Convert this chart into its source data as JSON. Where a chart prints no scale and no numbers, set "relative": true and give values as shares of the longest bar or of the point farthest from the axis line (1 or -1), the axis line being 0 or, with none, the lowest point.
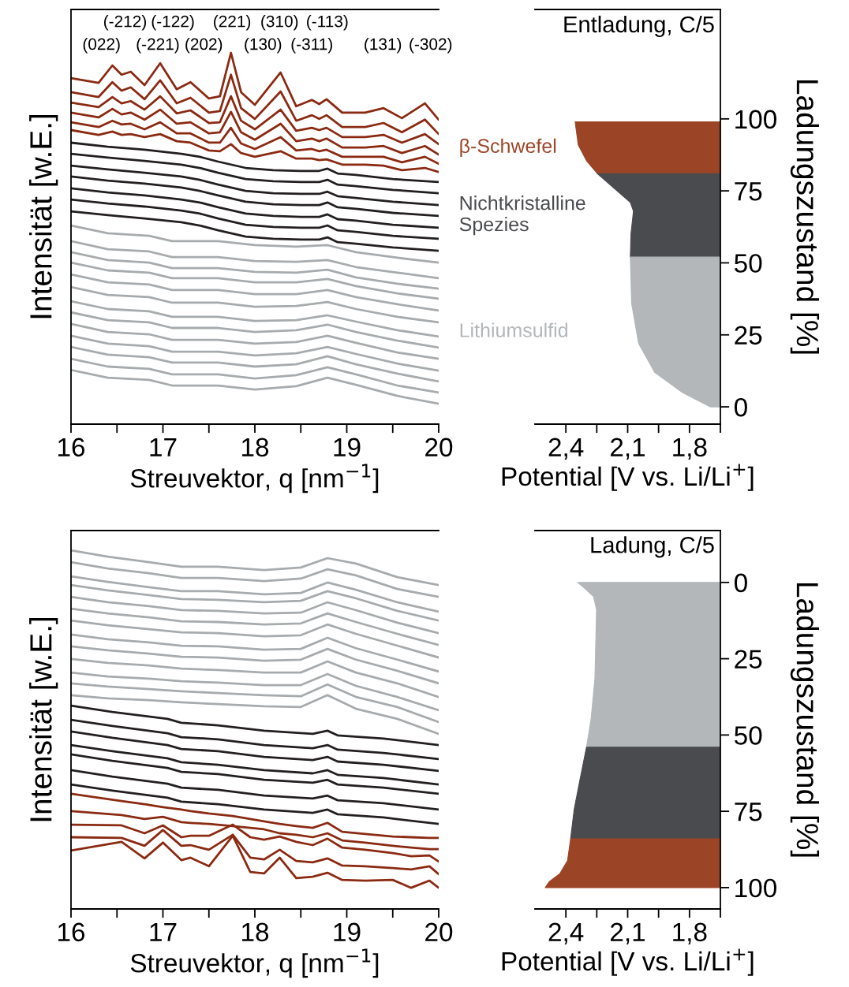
{
  "chart_data": [
    {
      "type": "line",
      "relative": true,
      "xlabel": "Streuvektor, q [nm$^{−1}$]",
      "ylabel": "Intensität [w.E.]",
      "xlim": [
        16,
        20
      ],
      "xticks": [
        16,
        {
          "value": 16.5,
          "label": null
        },
        17,
        {
          "value": 17.5,
          "label": null
        },
        18,
        {
          "value": 18.5,
          "label": null
        },
        19,
        {
          "value": 19.5,
          "label": null
        },
        20
      ],
      "x": [
        16.0,
        16.3,
        16.45,
        16.55,
        16.65,
        16.8,
        16.97,
        17.15,
        17.3,
        17.5,
        17.62,
        17.74,
        17.85,
        18.0,
        18.28,
        18.45,
        18.62,
        18.7,
        18.78,
        18.95,
        19.2,
        19.4,
        19.6,
        19.85,
        20.0
      ],
      "annotations": [
        "(-212)",
        "(-122)",
        "(221)",
        "(310)",
        "(-113)",
        "(022)",
        "(-221)",
        "(202)",
        "(130)",
        "(-311)",
        "(131)",
        "(-302)"
      ],
      "series": [
        {
          "color": "#8b2a12",
          "values": [
            0.932,
            0.919,
            0.966,
            0.941,
            0.949,
            0.913,
            0.972,
            0.902,
            0.921,
            0.877,
            0.883,
            1.0,
            0.894,
            0.86,
            0.947,
            0.856,
            0.873,
            0.862,
            0.875,
            0.839,
            0.839,
            0.851,
            0.824,
            0.864,
            0.82
          ]
        },
        {
          "color": "#8b2a12",
          "values": [
            0.894,
            0.881,
            0.921,
            0.898,
            0.907,
            0.875,
            0.926,
            0.864,
            0.879,
            0.839,
            0.843,
            0.941,
            0.851,
            0.822,
            0.896,
            0.817,
            0.832,
            0.822,
            0.832,
            0.8,
            0.8,
            0.811,
            0.786,
            0.82,
            0.781
          ]
        },
        {
          "color": "#8b2a12",
          "values": [
            0.866,
            0.854,
            0.881,
            0.864,
            0.87,
            0.847,
            0.883,
            0.837,
            0.845,
            0.811,
            0.813,
            0.883,
            0.817,
            0.794,
            0.847,
            0.79,
            0.798,
            0.792,
            0.798,
            0.773,
            0.773,
            0.779,
            0.758,
            0.781,
            0.754
          ]
        },
        {
          "color": "#8b2a12",
          "values": [
            0.839,
            0.826,
            0.849,
            0.834,
            0.839,
            0.82,
            0.847,
            0.809,
            0.813,
            0.783,
            0.786,
            0.841,
            0.786,
            0.766,
            0.809,
            0.762,
            0.769,
            0.762,
            0.769,
            0.745,
            0.745,
            0.749,
            0.73,
            0.749,
            0.726
          ]
        },
        {
          "color": "#8b2a12",
          "values": [
            0.813,
            0.8,
            0.817,
            0.807,
            0.809,
            0.794,
            0.813,
            0.783,
            0.783,
            0.758,
            0.758,
            0.798,
            0.756,
            0.741,
            0.773,
            0.737,
            0.741,
            0.735,
            0.739,
            0.72,
            0.72,
            0.72,
            0.705,
            0.72,
            0.701
          ]
        },
        {
          "color": "#8b2a12",
          "values": [
            0.792,
            0.779,
            0.788,
            0.779,
            0.781,
            0.773,
            0.781,
            0.762,
            0.758,
            0.737,
            0.735,
            0.754,
            0.73,
            0.72,
            0.735,
            0.715,
            0.715,
            0.711,
            0.713,
            0.699,
            0.699,
            0.696,
            0.684,
            0.69,
            0.679
          ]
        },
        {
          "color": "#231f20",
          "x": [
            16.0,
            16.4,
            16.8,
            17.2,
            17.4,
            17.6,
            17.9,
            18.2,
            18.5,
            18.7,
            18.79,
            18.9,
            19.1,
            19.5,
            20.0
          ],
          "values": [
            0.758,
            0.747,
            0.739,
            0.728,
            0.72,
            0.707,
            0.69,
            0.684,
            0.682,
            0.682,
            0.688,
            0.675,
            0.671,
            0.66,
            0.652
          ]
        },
        {
          "color": "#231f20",
          "x": [
            16.0,
            16.4,
            16.8,
            17.2,
            17.4,
            17.6,
            17.9,
            18.2,
            18.5,
            18.7,
            18.79,
            18.9,
            19.1,
            19.5,
            20.0
          ],
          "values": [
            0.728,
            0.718,
            0.709,
            0.699,
            0.69,
            0.677,
            0.66,
            0.654,
            0.652,
            0.652,
            0.658,
            0.645,
            0.641,
            0.631,
            0.622
          ]
        },
        {
          "color": "#231f20",
          "x": [
            16.0,
            16.4,
            16.8,
            17.2,
            17.4,
            17.6,
            17.9,
            18.2,
            18.5,
            18.7,
            18.79,
            18.9,
            19.1,
            19.5,
            20.0
          ],
          "values": [
            0.696,
            0.686,
            0.677,
            0.667,
            0.658,
            0.645,
            0.628,
            0.622,
            0.62,
            0.62,
            0.626,
            0.614,
            0.609,
            0.599,
            0.59
          ]
        },
        {
          "color": "#231f20",
          "x": [
            16.0,
            16.4,
            16.8,
            17.2,
            17.4,
            17.6,
            17.9,
            18.2,
            18.5,
            18.7,
            18.79,
            18.9,
            19.1,
            19.5,
            20.0
          ],
          "values": [
            0.667,
            0.656,
            0.648,
            0.637,
            0.628,
            0.616,
            0.599,
            0.592,
            0.59,
            0.59,
            0.597,
            0.584,
            0.58,
            0.569,
            0.561
          ]
        },
        {
          "color": "#231f20",
          "x": [
            16.0,
            16.4,
            16.8,
            17.2,
            17.4,
            17.6,
            17.9,
            18.2,
            18.5,
            18.7,
            18.79,
            18.9,
            19.1,
            19.5,
            20.0
          ],
          "values": [
            0.635,
            0.624,
            0.616,
            0.605,
            0.597,
            0.584,
            0.567,
            0.561,
            0.558,
            0.558,
            0.565,
            0.552,
            0.548,
            0.537,
            0.529
          ]
        },
        {
          "color": "#231f20",
          "x": [
            16.0,
            16.4,
            16.8,
            17.2,
            17.4,
            17.6,
            17.9,
            18.2,
            18.5,
            18.7,
            18.79,
            18.9,
            19.1,
            19.5,
            20.0
          ],
          "values": [
            0.605,
            0.594,
            0.586,
            0.575,
            0.567,
            0.554,
            0.537,
            0.531,
            0.529,
            0.529,
            0.535,
            0.522,
            0.518,
            0.507,
            0.499
          ]
        },
        {
          "color": "#231f20",
          "x": [
            16.0,
            16.4,
            16.8,
            17.2,
            17.4,
            17.6,
            17.9,
            18.2,
            18.5,
            18.7,
            18.79,
            18.9,
            19.1,
            19.5,
            20.0
          ],
          "values": [
            0.573,
            0.563,
            0.554,
            0.544,
            0.535,
            0.522,
            0.505,
            0.499,
            0.497,
            0.497,
            0.503,
            0.49,
            0.486,
            0.476,
            0.467
          ]
        },
        {
          "color": "#a7abad",
          "x": [
            16.0,
            16.4,
            16.85,
            17.1,
            17.6,
            18.0,
            18.45,
            18.79,
            19.1,
            19.55,
            20.0
          ],
          "values": [
            0.535,
            0.514,
            0.507,
            0.493,
            0.493,
            0.482,
            0.478,
            0.482,
            0.463,
            0.448,
            0.435
          ]
        },
        {
          "color": "#a7abad",
          "x": [
            16.0,
            16.4,
            16.85,
            17.1,
            17.6,
            18.0,
            18.45,
            18.79,
            19.1,
            19.55,
            20.0
          ],
          "values": [
            0.493,
            0.471,
            0.465,
            0.45,
            0.45,
            0.439,
            0.437,
            0.442,
            0.423,
            0.408,
            0.393
          ]
        },
        {
          "color": "#a7abad",
          "x": [
            16.0,
            16.4,
            16.85,
            17.1,
            17.6,
            18.0,
            18.45,
            18.79,
            19.1,
            19.55,
            20.0
          ],
          "values": [
            0.463,
            0.442,
            0.435,
            0.42,
            0.42,
            0.41,
            0.408,
            0.416,
            0.395,
            0.378,
            0.365
          ]
        },
        {
          "color": "#a7abad",
          "x": [
            16.0,
            16.4,
            16.85,
            17.1,
            17.6,
            18.0,
            18.45,
            18.79,
            19.1,
            19.55,
            20.0
          ],
          "values": [
            0.435,
            0.414,
            0.408,
            0.393,
            0.393,
            0.382,
            0.382,
            0.391,
            0.372,
            0.352,
            0.338
          ]
        },
        {
          "color": "#a7abad",
          "x": [
            16.0,
            16.4,
            16.85,
            17.1,
            17.6,
            18.0,
            18.45,
            18.79,
            19.1,
            19.55,
            20.0
          ],
          "values": [
            0.403,
            0.382,
            0.376,
            0.361,
            0.361,
            0.35,
            0.35,
            0.361,
            0.342,
            0.323,
            0.306
          ]
        },
        {
          "color": "#a7abad",
          "x": [
            16.0,
            16.4,
            16.85,
            17.1,
            17.6,
            18.0,
            18.45,
            18.79,
            19.1,
            19.55,
            20.0
          ],
          "values": [
            0.369,
            0.348,
            0.342,
            0.327,
            0.327,
            0.316,
            0.318,
            0.329,
            0.31,
            0.289,
            0.274
          ]
        },
        {
          "color": "#a7abad",
          "x": [
            16.0,
            16.4,
            16.85,
            17.1,
            17.6,
            18.0,
            18.45,
            18.79,
            19.1,
            19.55,
            20.0
          ],
          "values": [
            0.331,
            0.31,
            0.304,
            0.289,
            0.289,
            0.278,
            0.28,
            0.293,
            0.276,
            0.253,
            0.236
          ]
        },
        {
          "color": "#a7abad",
          "x": [
            16.0,
            16.4,
            16.85,
            17.1,
            17.6,
            18.0,
            18.45,
            18.79,
            19.1,
            19.55,
            20.0
          ],
          "values": [
            0.301,
            0.28,
            0.274,
            0.259,
            0.259,
            0.248,
            0.253,
            0.268,
            0.248,
            0.225,
            0.206
          ]
        },
        {
          "color": "#a7abad",
          "x": [
            16.0,
            16.4,
            16.85,
            17.1,
            17.6,
            18.0,
            18.45,
            18.79,
            19.1,
            19.55,
            20.0
          ],
          "values": [
            0.27,
            0.248,
            0.242,
            0.227,
            0.227,
            0.217,
            0.221,
            0.238,
            0.219,
            0.193,
            0.176
          ]
        },
        {
          "color": "#a7abad",
          "x": [
            16.0,
            16.4,
            16.85,
            17.1,
            17.6,
            18.0,
            18.45,
            18.79,
            19.1,
            19.55,
            20.0
          ],
          "values": [
            0.238,
            0.217,
            0.21,
            0.195,
            0.195,
            0.185,
            0.191,
            0.208,
            0.189,
            0.163,
            0.144
          ]
        },
        {
          "color": "#a7abad",
          "x": [
            16.0,
            16.4,
            16.85,
            17.1,
            17.6,
            18.0,
            18.45,
            18.79,
            19.1,
            19.55,
            20.0
          ],
          "values": [
            0.208,
            0.187,
            0.18,
            0.166,
            0.166,
            0.155,
            0.161,
            0.183,
            0.161,
            0.136,
            0.115
          ]
        },
        {
          "color": "#a7abad",
          "x": [
            16.0,
            16.4,
            16.85,
            17.1,
            17.6,
            18.0,
            18.45,
            18.79,
            19.1,
            19.55,
            20.0
          ],
          "values": [
            0.176,
            0.155,
            0.149,
            0.134,
            0.134,
            0.123,
            0.132,
            0.153,
            0.134,
            0.104,
            0.085
          ]
        },
        {
          "color": "#a7abad",
          "x": [
            16.0,
            16.4,
            16.85,
            17.1,
            17.6,
            18.0,
            18.45,
            18.79,
            19.1,
            19.55,
            20.0
          ],
          "values": [
            0.146,
            0.125,
            0.119,
            0.104,
            0.104,
            0.093,
            0.102,
            0.125,
            0.106,
            0.076,
            0.055
          ]
        }
      ]
    },
    {
      "type": "area",
      "orientation": "horizontal",
      "title": "Entladung, C/5",
      "xlabel": "Potential [V vs. Li/Li$^{+}$]",
      "ylabel": "Ladungszustand [%]",
      "xlim": [
        2.55,
        1.65
      ],
      "xticks": [
        {
          "value": 2.4,
          "label": "2,4"
        },
        {
          "value": 2.25,
          "label": null
        },
        {
          "value": 2.1,
          "label": "2,1"
        },
        {
          "value": 1.95,
          "label": null
        },
        {
          "value": 1.8,
          "label": "1,8"
        },
        {
          "value": 1.65,
          "label": null
        }
      ],
      "ylim": [
        -6,
        138
      ],
      "yticks": [
        0,
        25,
        50,
        75,
        100
      ],
      "series": [
        {
          "name": "β-Schwefel",
          "color": "#9c4526",
          "values": [
            2.355,
            2.34,
            2.3,
            2.247
          ],
          "x": [
            99,
            91,
            85.5,
            81
          ]
        },
        {
          "name": "Nichtkristalline\nSpezies",
          "color": "#4a4b4e",
          "values": [
            2.247,
            2.167,
            2.087,
            2.072,
            2.084,
            2.087
          ],
          "x": [
            81,
            76,
            71,
            68,
            60,
            52
          ]
        },
        {
          "name": "Lithiumsulfid",
          "color": "#b3b7ba",
          "values": [
            2.087,
            2.081,
            2.047,
            1.969,
            1.835,
            1.7
          ],
          "x": [
            52,
            36,
            22,
            12,
            5,
            0
          ]
        }
      ]
    },
    {
      "type": "line",
      "relative": true,
      "xlabel": "Streuvektor, q [nm$^{−1}$]",
      "ylabel": "Intensität [w.E.]",
      "xlim": [
        16,
        20
      ],
      "xticks": [
        16,
        {
          "value": 16.5,
          "label": null
        },
        17,
        {
          "value": 17.5,
          "label": null
        },
        18,
        {
          "value": 18.5,
          "label": null
        },
        19,
        {
          "value": 19.5,
          "label": null
        },
        20
      ],
      "x": [
        16.0,
        16.4,
        16.85,
        17.2,
        17.6,
        18.1,
        18.5,
        18.79,
        19.1,
        19.55,
        20.0
      ],
      "series": [
        {
          "color": "#a7abad",
          "values": [
            1.0,
            0.982,
            0.967,
            0.954,
            0.954,
            0.945,
            0.952,
            0.978,
            0.963,
            0.925,
            0.903
          ]
        },
        {
          "color": "#a7abad",
          "values": [
            0.967,
            0.949,
            0.936,
            0.923,
            0.923,
            0.914,
            0.921,
            0.947,
            0.93,
            0.892,
            0.87
          ]
        },
        {
          "color": "#a7abad",
          "values": [
            0.927,
            0.912,
            0.897,
            0.886,
            0.886,
            0.877,
            0.881,
            0.91,
            0.89,
            0.855,
            0.829
          ]
        },
        {
          "color": "#a7abad",
          "values": [
            0.903,
            0.888,
            0.875,
            0.864,
            0.862,
            0.855,
            0.859,
            0.886,
            0.866,
            0.831,
            0.804
          ]
        },
        {
          "color": "#a7abad",
          "values": [
            0.87,
            0.855,
            0.844,
            0.833,
            0.831,
            0.824,
            0.826,
            0.855,
            0.833,
            0.798,
            0.769
          ]
        },
        {
          "color": "#a7abad",
          "values": [
            0.837,
            0.824,
            0.813,
            0.802,
            0.8,
            0.793,
            0.796,
            0.824,
            0.8,
            0.767,
            0.736
          ]
        },
        {
          "color": "#a7abad",
          "values": [
            0.804,
            0.791,
            0.78,
            0.771,
            0.769,
            0.76,
            0.763,
            0.793,
            0.767,
            0.734,
            0.701
          ]
        },
        {
          "color": "#a7abad",
          "values": [
            0.765,
            0.752,
            0.743,
            0.734,
            0.732,
            0.723,
            0.725,
            0.756,
            0.727,
            0.695,
            0.662
          ]
        },
        {
          "color": "#a7abad",
          "values": [
            0.732,
            0.721,
            0.712,
            0.703,
            0.701,
            0.692,
            0.695,
            0.725,
            0.695,
            0.664,
            0.629
          ]
        },
        {
          "color": "#a7abad",
          "values": [
            0.697,
            0.686,
            0.679,
            0.67,
            0.666,
            0.659,
            0.659,
            0.69,
            0.659,
            0.629,
            0.591
          ]
        },
        {
          "color": "#a7abad",
          "values": [
            0.659,
            0.648,
            0.642,
            0.635,
            0.631,
            0.624,
            0.624,
            0.655,
            0.622,
            0.591,
            0.554
          ]
        },
        {
          "color": "#a7abad",
          "values": [
            0.629,
            0.62,
            0.613,
            0.607,
            0.602,
            0.596,
            0.593,
            0.626,
            0.591,
            0.563,
            0.521
          ]
        },
        {
          "color": "#a7abad",
          "values": [
            0.596,
            0.587,
            0.582,
            0.576,
            0.571,
            0.565,
            0.563,
            0.596,
            0.558,
            0.53,
            0.488
          ]
        },
        {
          "color": "#231f20",
          "x": [
            16.0,
            16.45,
            17.05,
            17.2,
            17.6,
            18.1,
            18.63,
            18.79,
            18.9,
            19.4,
            20.0
          ],
          "values": [
            0.567,
            0.549,
            0.53,
            0.519,
            0.512,
            0.497,
            0.488,
            0.497,
            0.484,
            0.475,
            0.457
          ]
        },
        {
          "color": "#231f20",
          "x": [
            16.0,
            16.45,
            17.05,
            17.2,
            17.6,
            18.1,
            18.63,
            18.79,
            18.9,
            19.4,
            20.0
          ],
          "values": [
            0.527,
            0.51,
            0.49,
            0.479,
            0.473,
            0.457,
            0.448,
            0.457,
            0.444,
            0.435,
            0.418
          ]
        },
        {
          "color": "#231f20",
          "x": [
            16.0,
            16.45,
            17.05,
            17.2,
            17.6,
            18.1,
            18.63,
            18.79,
            18.9,
            19.4,
            20.0
          ],
          "values": [
            0.495,
            0.477,
            0.457,
            0.446,
            0.44,
            0.424,
            0.415,
            0.424,
            0.411,
            0.402,
            0.385
          ]
        },
        {
          "color": "#231f20",
          "x": [
            16.0,
            16.45,
            17.05,
            17.2,
            17.6,
            18.1,
            18.63,
            18.79,
            18.9,
            19.4,
            20.0
          ],
          "values": [
            0.457,
            0.44,
            0.42,
            0.409,
            0.402,
            0.387,
            0.378,
            0.387,
            0.374,
            0.365,
            0.347
          ]
        },
        {
          "color": "#231f20",
          "x": [
            16.0,
            16.45,
            17.05,
            17.2,
            17.6,
            18.1,
            18.63,
            18.79,
            18.9,
            19.4,
            20.0
          ],
          "values": [
            0.431,
            0.413,
            0.393,
            0.382,
            0.376,
            0.36,
            0.352,
            0.36,
            0.347,
            0.338,
            0.321
          ]
        },
        {
          "color": "#231f20",
          "x": [
            16.0,
            16.45,
            17.05,
            17.2,
            17.6,
            18.1,
            18.63,
            18.79,
            18.9,
            19.4,
            20.0
          ],
          "values": [
            0.387,
            0.369,
            0.349,
            0.338,
            0.332,
            0.316,
            0.308,
            0.316,
            0.303,
            0.295,
            0.277
          ]
        },
        {
          "color": "#231f20",
          "x": [
            16.0,
            16.45,
            17.05,
            17.2,
            17.6,
            18.1,
            18.63,
            18.79,
            18.9,
            19.4,
            20.0
          ],
          "values": [
            0.347,
            0.33,
            0.31,
            0.299,
            0.292,
            0.277,
            0.268,
            0.277,
            0.264,
            0.255,
            0.237
          ]
        },
        {
          "color": "#8b2a12",
          "x": [
            16.0,
            16.55,
            16.8,
            17.0,
            17.2,
            17.3,
            17.5,
            17.76,
            17.95,
            18.1,
            18.27,
            18.45,
            18.63,
            18.79,
            18.95,
            19.2,
            19.5,
            19.7,
            19.9,
            20.0
          ],
          "values": [
            0.321,
            0.301,
            0.292,
            0.284,
            0.277,
            0.273,
            0.266,
            0.259,
            0.251,
            0.244,
            0.237,
            0.231,
            0.226,
            0.24,
            0.215,
            0.209,
            0.202,
            0.2,
            0.198,
            0.198
          ]
        },
        {
          "color": "#8b2a12",
          "x": [
            16.0,
            16.55,
            16.8,
            17.0,
            17.2,
            17.3,
            17.5,
            17.76,
            17.95,
            18.1,
            18.27,
            18.45,
            18.63,
            18.79,
            18.95,
            19.2,
            19.5,
            19.7,
            19.9,
            20.0
          ],
          "values": [
            0.273,
            0.262,
            0.251,
            0.257,
            0.242,
            0.24,
            0.237,
            0.231,
            0.226,
            0.222,
            0.211,
            0.207,
            0.2,
            0.211,
            0.191,
            0.185,
            0.176,
            0.171,
            0.167,
            0.167
          ]
        },
        {
          "color": "#8b2a12",
          "x": [
            16.0,
            16.55,
            16.8,
            17.0,
            17.2,
            17.3,
            17.5,
            17.76,
            17.95,
            18.1,
            18.27,
            18.45,
            18.63,
            18.79,
            18.95,
            19.2,
            19.5,
            19.7,
            19.9,
            20.0
          ],
          "values": [
            0.235,
            0.233,
            0.211,
            0.233,
            0.2,
            0.204,
            0.204,
            0.235,
            0.2,
            0.193,
            0.202,
            0.187,
            0.178,
            0.196,
            0.171,
            0.165,
            0.156,
            0.147,
            0.149,
            0.132
          ]
        },
        {
          "color": "#8b2a12",
          "x": [
            16.0,
            16.55,
            16.8,
            17.0,
            17.2,
            17.3,
            17.5,
            17.76,
            17.95,
            18.1,
            18.27,
            18.45,
            18.63,
            18.79,
            18.95,
            19.2,
            19.5,
            19.7,
            19.9,
            20.0
          ],
          "values": [
            0.2,
            0.198,
            0.176,
            0.22,
            0.176,
            0.178,
            0.165,
            0.207,
            0.143,
            0.138,
            0.165,
            0.134,
            0.13,
            0.141,
            0.121,
            0.119,
            0.114,
            0.11,
            0.119,
            0.097
          ]
        },
        {
          "color": "#8b2a12",
          "x": [
            16.0,
            16.55,
            16.8,
            17.0,
            17.2,
            17.3,
            17.5,
            17.76,
            17.95,
            18.1,
            18.27,
            18.45,
            18.63,
            18.79,
            18.95,
            19.2,
            19.5,
            19.7,
            19.9,
            20.0
          ],
          "values": [
            0.163,
            0.187,
            0.141,
            0.185,
            0.136,
            0.143,
            0.119,
            0.204,
            0.103,
            0.099,
            0.143,
            0.086,
            0.09,
            0.101,
            0.081,
            0.079,
            0.081,
            0.059,
            0.079,
            0.059
          ]
        }
      ]
    },
    {
      "type": "area",
      "orientation": "horizontal",
      "title": "Ladung, C/5",
      "xlabel": "Potential [V vs. Li/Li$^{+}$]",
      "ylabel": "Ladungszustand [%]",
      "xlim": [
        2.55,
        1.65
      ],
      "xticks": [
        {
          "value": 2.4,
          "label": "2,4"
        },
        {
          "value": 2.25,
          "label": null
        },
        {
          "value": 2.1,
          "label": "2,1"
        },
        {
          "value": 1.95,
          "label": null
        },
        {
          "value": 1.8,
          "label": "1,8"
        },
        {
          "value": 1.65,
          "label": null
        }
      ],
      "ylim": [
        107,
        -17
      ],
      "yticks": [
        0,
        25,
        50,
        75,
        100
      ],
      "series": [
        {
          "color": "#b3b7ba",
          "values": [
            2.343,
            2.316,
            2.266,
            2.251,
            2.259,
            2.278,
            2.3
          ],
          "x": [
            0,
            1.5,
            4.6,
            8.9,
            31.4,
            45,
            54
          ]
        },
        {
          "color": "#4a4b4e",
          "values": [
            2.3,
            2.335,
            2.36,
            2.377
          ],
          "x": [
            54,
            65.8,
            74.5,
            84
          ]
        },
        {
          "color": "#9c4526",
          "values": [
            2.377,
            2.392,
            2.43,
            2.481,
            2.5
          ],
          "x": [
            84,
            91.2,
            95.5,
            98.1,
            100
          ]
        }
      ]
    }
  ]
}
